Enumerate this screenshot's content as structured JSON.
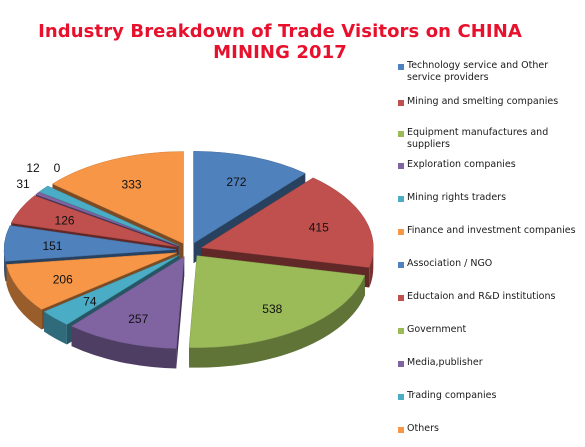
{
  "chart_data": {
    "type": "pie",
    "title": "Industry Breakdown of Trade Visitors on CHINA MINING 2017",
    "legend_position": "right",
    "slices": [
      {
        "label": "Technology service and Other service providers",
        "value": 272,
        "color": "#4f81bd"
      },
      {
        "label": "Mining and smelting companies",
        "value": 415,
        "color": "#c0504d"
      },
      {
        "label": "Equipment manufactures and suppliers",
        "value": 538,
        "color": "#9bbb59"
      },
      {
        "label": "Exploration companies",
        "value": 257,
        "color": "#8064a2"
      },
      {
        "label": "Mining rights traders",
        "value": 74,
        "color": "#4bacc6"
      },
      {
        "label": "Finance and investment companies",
        "value": 206,
        "color": "#f79646"
      },
      {
        "label": "Association / NGO",
        "value": 151,
        "color": "#4f81bd"
      },
      {
        "label": "Eductaion and R&D institutions",
        "value": 126,
        "color": "#c0504d"
      },
      {
        "label": "Government",
        "value": 0,
        "color": "#9bbb59"
      },
      {
        "label": "Media,publisher",
        "value": 12,
        "color": "#8064a2"
      },
      {
        "label": "Trading companies",
        "value": 31,
        "color": "#4bacc6"
      },
      {
        "label": "Others",
        "value": 333,
        "color": "#f79646"
      }
    ]
  }
}
